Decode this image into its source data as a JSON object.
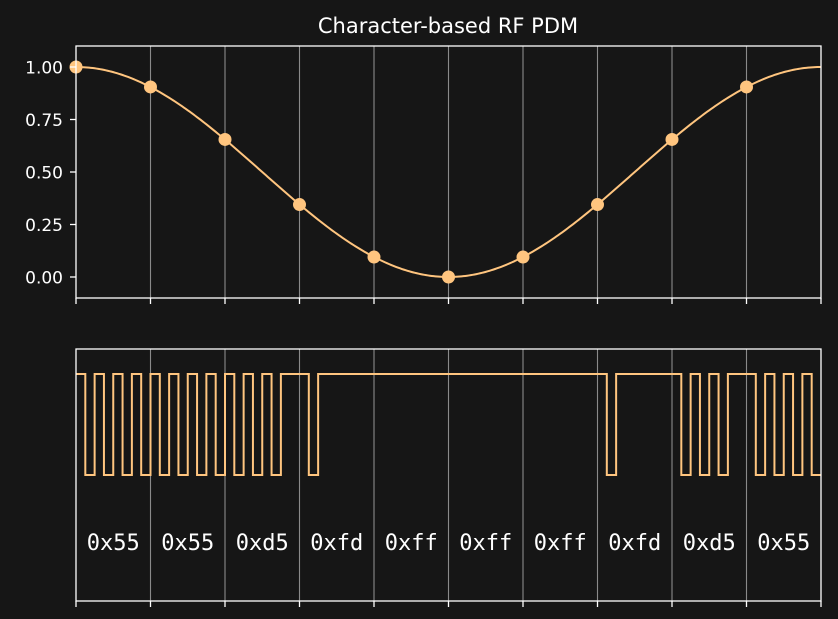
{
  "style": {
    "background": "#161616",
    "foreground": "#ffffff",
    "grid": "#8a8a8a",
    "series": "#ffc57f"
  },
  "chart_data": [
    {
      "type": "line",
      "title": "Character-based RF PDM",
      "xlim": [
        0,
        10
      ],
      "ylim": [
        -0.1,
        1.1
      ],
      "yticks": [
        1.0,
        0.75,
        0.5,
        0.25,
        0.0
      ],
      "ytick_labels": [
        "1.00",
        "0.75",
        "0.50",
        "0.25",
        "0.00"
      ],
      "xgrid": [
        1,
        2,
        3,
        4,
        5,
        6,
        7,
        8,
        9
      ],
      "xtick_labels": [],
      "curve": "0.5 + 0.5*cos(2*pi*x/10)",
      "samples": {
        "x": [
          0,
          1,
          2,
          3,
          4,
          5,
          6,
          7,
          8,
          9
        ],
        "y": [
          1.0,
          0.905,
          0.655,
          0.345,
          0.095,
          0.0,
          0.095,
          0.345,
          0.655,
          0.905
        ]
      }
    },
    {
      "type": "line",
      "subtype": "step",
      "xlim": [
        0,
        10
      ],
      "ylim": [
        0,
        1
      ],
      "xgrid": [
        1,
        2,
        3,
        4,
        5,
        6,
        7,
        8,
        9
      ],
      "xtick_labels": [],
      "bits_per_char": 8,
      "chars": [
        {
          "label": "0x55",
          "value": 85
        },
        {
          "label": "0x55",
          "value": 85
        },
        {
          "label": "0xd5",
          "value": 213
        },
        {
          "label": "0xfd",
          "value": 253
        },
        {
          "label": "0xff",
          "value": 255
        },
        {
          "label": "0xff",
          "value": 255
        },
        {
          "label": "0xff",
          "value": 255
        },
        {
          "label": "0xfd",
          "value": 253
        },
        {
          "label": "0xd5",
          "value": 213
        },
        {
          "label": "0x55",
          "value": 85
        }
      ]
    }
  ]
}
